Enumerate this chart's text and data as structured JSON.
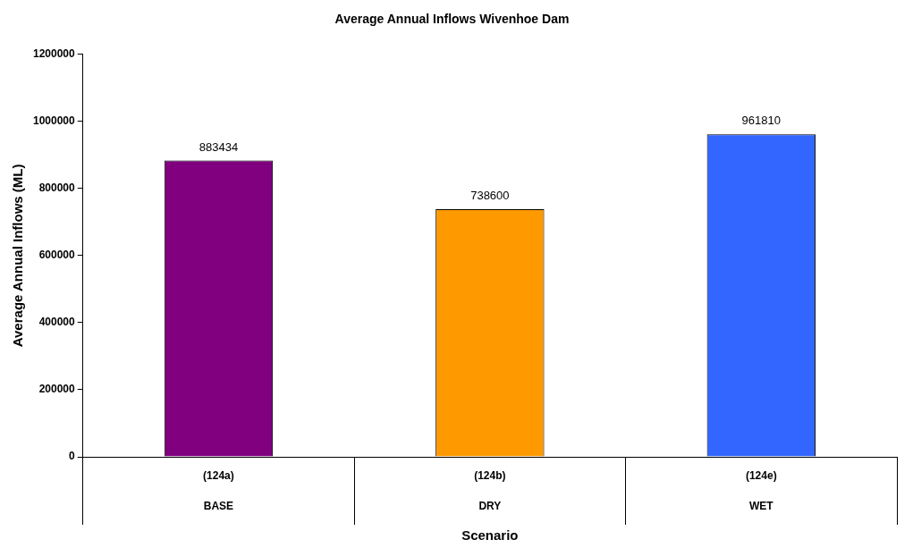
{
  "chart_data": {
    "type": "bar",
    "title": "Average Annual Inflows Wivenhoe Dam",
    "xlabel": "Scenario",
    "ylabel": "Average Annual Inflows (ML)",
    "categories": [
      "(124a)\nBASE",
      "(124b)\nDRY",
      "(124e)\nWET"
    ],
    "values": [
      883434,
      738600,
      961810
    ],
    "colors": [
      "#800080",
      "#ff9900",
      "#3366ff"
    ],
    "ylim": [
      0,
      1200000
    ],
    "yticks": [
      0,
      200000,
      400000,
      600000,
      800000,
      1000000,
      1200000
    ],
    "grid": false,
    "legend": false,
    "data_labels": true
  }
}
